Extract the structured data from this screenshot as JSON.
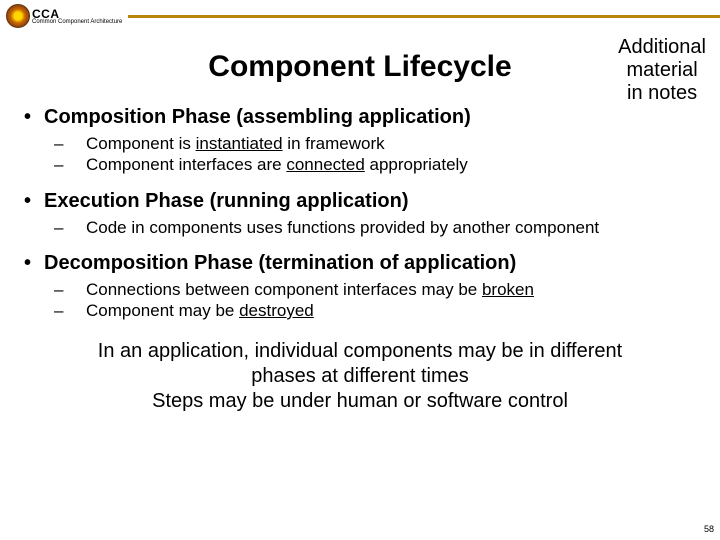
{
  "header": {
    "acronym": "CCA",
    "subtitle": "Common Component Architecture",
    "line_color": "#b8860b"
  },
  "title": "Component Lifecycle",
  "side_note": {
    "line1": "Additional",
    "line2": "material",
    "line3": "in notes"
  },
  "sections": [
    {
      "heading": "Composition Phase (assembling application)",
      "items": [
        {
          "pre": "Component is ",
          "hl": "instantiated",
          "post": " in framework"
        },
        {
          "pre": "Component interfaces are ",
          "hl": "connected",
          "post": " appropriately"
        }
      ]
    },
    {
      "heading": "Execution Phase (running application)",
      "items": [
        {
          "pre": "Code in components uses functions provided by another component",
          "hl": "",
          "post": ""
        }
      ]
    },
    {
      "heading": "Decomposition Phase (termination of application)",
      "items": [
        {
          "pre": "Connections between component interfaces may be ",
          "hl": "broken",
          "post": ""
        },
        {
          "pre": "Component may be ",
          "hl": "destroyed",
          "post": ""
        }
      ]
    }
  ],
  "footer": {
    "line1": "In an application, individual components may be in different phases at different times",
    "line2": "Steps may be under human or software control"
  },
  "page_number": "58"
}
